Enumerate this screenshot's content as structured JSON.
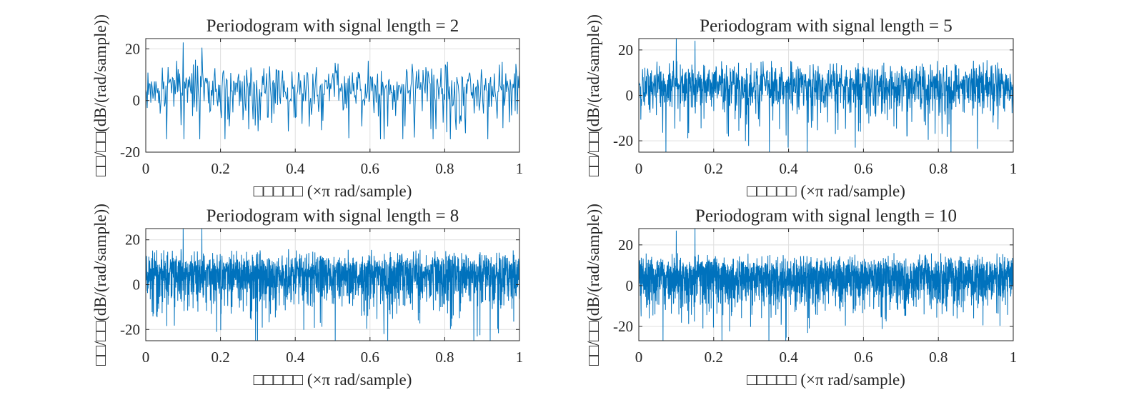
{
  "figure": {
    "charts": [
      {
        "title": "Periodogram with signal length =  2",
        "xlabel": "□□□□□  (×π rad/sample)",
        "ylabel": "□□/□□(dB/(rad/sample))",
        "xlim": [
          0,
          1
        ],
        "ylim": [
          -20,
          24
        ],
        "yticks": [
          -20,
          0,
          20
        ],
        "xticks": [
          0,
          0.2,
          0.4,
          0.6,
          0.8,
          1
        ],
        "n_points": 520,
        "seed": 11,
        "spikes": [
          [
            0.1,
            22.5
          ],
          [
            0.15,
            20.5
          ]
        ],
        "floor": -15
      },
      {
        "title": "Periodogram with signal length =  5",
        "xlabel": "□□□□□  (×π rad/sample)",
        "ylabel": "□□/□□(dB/(rad/sample))",
        "xlim": [
          0,
          1
        ],
        "ylim": [
          -25,
          25
        ],
        "yticks": [
          -20,
          0,
          20
        ],
        "xticks": [
          0,
          0.2,
          0.4,
          0.6,
          0.8,
          1
        ],
        "n_points": 1300,
        "seed": 29,
        "spikes": [
          [
            0.1,
            25
          ],
          [
            0.15,
            24
          ]
        ],
        "floor": -25
      },
      {
        "title": "Periodogram with signal length =  8",
        "xlabel": "□□□□□  (×π rad/sample)",
        "ylabel": "□□/□□(dB/(rad/sample))",
        "xlim": [
          0,
          1
        ],
        "ylim": [
          -25,
          25
        ],
        "yticks": [
          -20,
          0,
          20
        ],
        "xticks": [
          0,
          0.2,
          0.4,
          0.6,
          0.8,
          1
        ],
        "n_points": 2080,
        "seed": 47,
        "spikes": [
          [
            0.1,
            25
          ],
          [
            0.15,
            25
          ]
        ],
        "floor": -25
      },
      {
        "title": "Periodogram with signal length =  10",
        "xlabel": "□□□□□  (×π rad/sample)",
        "ylabel": "□□/□□(dB/(rad/sample))",
        "xlim": [
          0,
          1
        ],
        "ylim": [
          -27,
          28
        ],
        "yticks": [
          -20,
          0,
          20
        ],
        "xticks": [
          0,
          0.2,
          0.4,
          0.6,
          0.8,
          1
        ],
        "n_points": 2600,
        "seed": 83,
        "spikes": [
          [
            0.1,
            27
          ],
          [
            0.15,
            28
          ]
        ],
        "floor": -27
      }
    ]
  },
  "chart_data": [
    {
      "type": "line",
      "title": "Periodogram with signal length =  2",
      "xlabel": "□□□□□  (×π rad/sample)",
      "ylabel": "□□/□□(dB/(rad/sample))",
      "xlim": [
        0,
        1
      ],
      "ylim": [
        -20,
        24
      ],
      "grid": true,
      "series": [
        {
          "description": "noise-like PSD estimate fluctuating mostly between about -10 and 15 dB, peaks near 0.1 (~22 dB) and 0.15 (~20 dB)",
          "x": [
            0,
            0.05,
            0.1,
            0.15,
            0.2,
            0.3,
            0.4,
            0.5,
            0.6,
            0.7,
            0.75,
            0.8,
            0.9,
            1
          ],
          "y": [
            7,
            6,
            22.5,
            20.5,
            5,
            8,
            6,
            7,
            8,
            5,
            -14,
            6,
            7,
            6
          ]
        }
      ],
      "color": "#0072BD"
    },
    {
      "type": "line",
      "title": "Periodogram with signal length =  5",
      "xlabel": "□□□□□  (×π rad/sample)",
      "ylabel": "□□/□□(dB/(rad/sample))",
      "xlim": [
        0,
        1
      ],
      "ylim": [
        -25,
        25
      ],
      "grid": true,
      "series": [
        {
          "description": "dense noise-like PSD, mean ~6 dB, band roughly -10..15 dB, dips to ~-25 dB",
          "x": [
            0,
            0.1,
            0.15,
            0.25,
            0.5,
            0.75,
            0.88,
            1
          ],
          "y": [
            6,
            25,
            24,
            -22,
            6,
            7,
            -25,
            6
          ]
        }
      ],
      "color": "#0072BD"
    },
    {
      "type": "line",
      "title": "Periodogram with signal length =  8",
      "xlabel": "□□□□□  (×π rad/sample)",
      "ylabel": "□□/□□(dB/(rad/sample))",
      "xlim": [
        0,
        1
      ],
      "ylim": [
        -25,
        25
      ],
      "grid": true,
      "series": [
        {
          "description": "dense noise-like PSD, mean ~6 dB, band roughly -10..16 dB, dips to ~-25 dB",
          "x": [
            0,
            0.1,
            0.15,
            0.47,
            0.62,
            1
          ],
          "y": [
            6,
            25,
            25,
            -23,
            -25,
            6
          ]
        }
      ],
      "color": "#0072BD"
    },
    {
      "type": "line",
      "title": "Periodogram with signal length =  10",
      "xlabel": "□□□□□  (×π rad/sample)",
      "ylabel": "□□/□□(dB/(rad/sample))",
      "xlim": [
        0,
        1
      ],
      "ylim": [
        -27,
        28
      ],
      "grid": true,
      "series": [
        {
          "description": "dense noise-like PSD, mean ~6 dB, band roughly -10..16 dB, dips to ~-27 dB",
          "x": [
            0,
            0.1,
            0.14,
            0.15,
            0.5,
            1
          ],
          "y": [
            6,
            27,
            -27,
            28,
            6,
            -27
          ]
        }
      ],
      "color": "#0072BD"
    }
  ]
}
